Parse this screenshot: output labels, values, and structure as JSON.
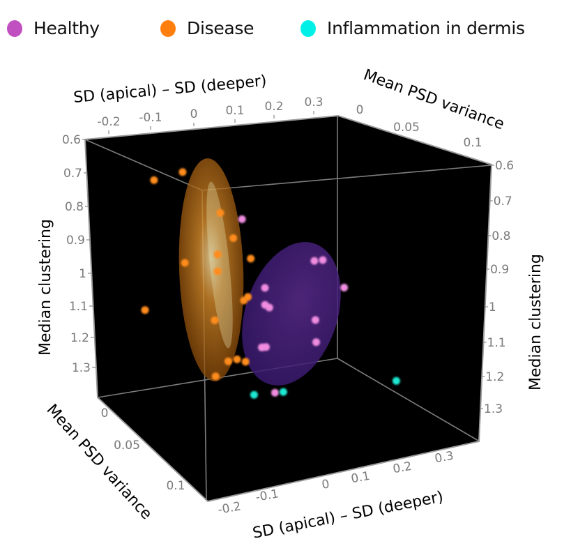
{
  "chart_data": {
    "type": "scatter",
    "subtype": "3d-scatter-with-confidence-ellipsoids",
    "legend": {
      "placement": "top",
      "entries": [
        {
          "name": "Healthy",
          "color": "#c050c0"
        },
        {
          "name": "Disease",
          "color": "#ff7f0e"
        },
        {
          "name": "Inflammation in dermis",
          "color": "#00f0e8"
        }
      ]
    },
    "axes": {
      "x": {
        "label": "SD (apical)  –  SD (deeper)",
        "ticks": [
          "-0.2",
          "-0.1",
          "0",
          "0.1",
          "0.2",
          "0.3"
        ],
        "range": [
          -0.25,
          0.35
        ]
      },
      "y": {
        "label": "Mean PSD variance",
        "ticks": [
          "0",
          "0.05",
          "0.1"
        ],
        "range": [
          0,
          0.13
        ]
      },
      "z": {
        "label": "Median clustering",
        "ticks": [
          "0.6",
          "0.7",
          "0.8",
          "0.9",
          "1",
          "1.1",
          "1.2",
          "1.3"
        ],
        "range": [
          0.6,
          1.35
        ],
        "inverted": true
      }
    },
    "background": "#000000",
    "series": [
      {
        "name": "Disease",
        "color": "#ff8c1a",
        "ellipsoid_color": "#e8891c",
        "points": [
          {
            "x": -0.13,
            "y": 0.02,
            "z": 0.72
          },
          {
            "x": -0.08,
            "y": 0.03,
            "z": 0.69
          },
          {
            "x": -0.05,
            "y": 0.06,
            "z": 0.79
          },
          {
            "x": -0.04,
            "y": 0.07,
            "z": 0.86
          },
          {
            "x": -0.06,
            "y": 0.06,
            "z": 0.92
          },
          {
            "x": 0.0,
            "y": 0.07,
            "z": 0.93
          },
          {
            "x": -0.12,
            "y": 0.05,
            "z": 0.95
          },
          {
            "x": -0.08,
            "y": 0.07,
            "z": 0.96
          },
          {
            "x": -0.01,
            "y": 0.07,
            "z": 1.05
          },
          {
            "x": -0.02,
            "y": 0.07,
            "z": 1.06
          },
          {
            "x": -0.2,
            "y": 0.04,
            "z": 1.1
          },
          {
            "x": -0.11,
            "y": 0.08,
            "z": 1.1
          },
          {
            "x": -0.1,
            "y": 0.09,
            "z": 1.22
          },
          {
            "x": -0.06,
            "y": 0.08,
            "z": 1.23
          },
          {
            "x": -0.04,
            "y": 0.08,
            "z": 1.24
          },
          {
            "x": -0.15,
            "y": 0.1,
            "z": 1.25
          }
        ]
      },
      {
        "name": "Healthy",
        "color": "#f08ce0",
        "ellipsoid_color": "#5a2a9a",
        "points": [
          {
            "x": 0.02,
            "y": 0.05,
            "z": 0.83
          },
          {
            "x": 0.17,
            "y": 0.06,
            "z": 0.97
          },
          {
            "x": 0.19,
            "y": 0.06,
            "z": 0.97
          },
          {
            "x": 0.05,
            "y": 0.06,
            "z": 1.04
          },
          {
            "x": 0.22,
            "y": 0.07,
            "z": 1.05
          },
          {
            "x": 0.03,
            "y": 0.07,
            "z": 1.08
          },
          {
            "x": 0.04,
            "y": 0.07,
            "z": 1.09
          },
          {
            "x": 0.13,
            "y": 0.08,
            "z": 1.13
          },
          {
            "x": 0.13,
            "y": 0.08,
            "z": 1.2
          },
          {
            "x": 0.0,
            "y": 0.08,
            "z": 1.2
          },
          {
            "x": 0.01,
            "y": 0.08,
            "z": 1.2
          },
          {
            "x": -0.01,
            "y": 0.1,
            "z": 1.32
          }
        ]
      },
      {
        "name": "Inflammation in dermis",
        "color": "#1de9d2",
        "points": [
          {
            "x": -0.06,
            "y": 0.1,
            "z": 1.32
          },
          {
            "x": 0.01,
            "y": 0.1,
            "z": 1.32
          },
          {
            "x": 0.28,
            "y": 0.1,
            "z": 1.32
          }
        ]
      }
    ]
  }
}
